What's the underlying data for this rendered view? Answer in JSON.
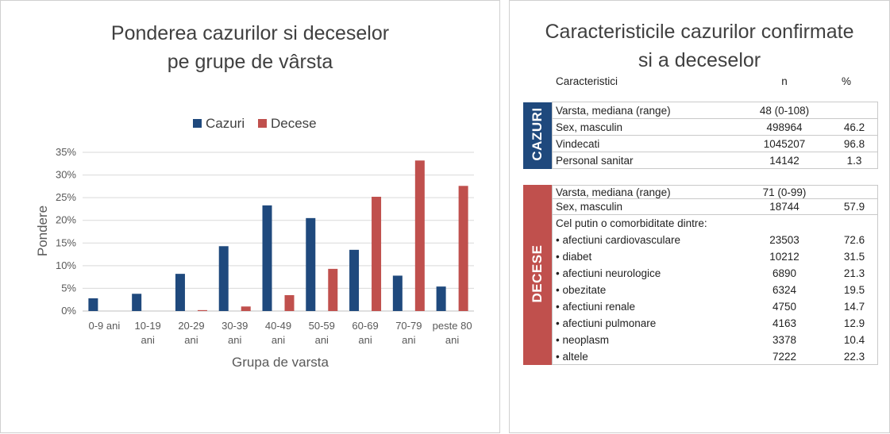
{
  "colors": {
    "cazuri": "#1f497d",
    "decese": "#c0504d",
    "grid": "#d9d9d9"
  },
  "chart": {
    "title_line1": "Ponderea cazurilor si deceselor",
    "title_line2": "pe grupe de vârsta"
  },
  "chart_data": {
    "type": "bar",
    "title": "Ponderea cazurilor si deceselor pe grupe de vârsta",
    "xlabel": "Grupa de varsta",
    "ylabel": "Pondere",
    "ylim": [
      0,
      35
    ],
    "yticks": [
      "0%",
      "5%",
      "10%",
      "15%",
      "20%",
      "25%",
      "30%",
      "35%"
    ],
    "categories": [
      [
        "0-9 ani"
      ],
      [
        "10-19",
        "ani"
      ],
      [
        "20-29",
        "ani"
      ],
      [
        "30-39",
        "ani"
      ],
      [
        "40-49",
        "ani"
      ],
      [
        "50-59",
        "ani"
      ],
      [
        "60-69",
        "ani"
      ],
      [
        "70-79",
        "ani"
      ],
      [
        "peste 80",
        "ani"
      ]
    ],
    "series": [
      {
        "name": "Cazuri",
        "values": [
          2.8,
          3.8,
          8.2,
          14.3,
          23.3,
          20.5,
          13.5,
          7.8,
          5.4
        ]
      },
      {
        "name": "Decese",
        "values": [
          0.0,
          0.0,
          0.2,
          1.0,
          3.5,
          9.3,
          25.2,
          33.2,
          27.6
        ]
      }
    ],
    "legend": "top",
    "grid": true
  },
  "table": {
    "title_line1": "Caracteristicile cazurilor confirmate",
    "title_line2": "si a deceselor",
    "headers": {
      "name": "Caracteristici",
      "n": "n",
      "pct": "%"
    },
    "cazuri": {
      "label": "CAZURI",
      "rows": [
        {
          "name": "Varsta, mediana (range)",
          "n": "48 (0-108)",
          "pct": ""
        },
        {
          "name": "Sex, masculin",
          "n": "498964",
          "pct": "46.2"
        },
        {
          "name": "Vindecati",
          "n": "1045207",
          "pct": "96.8"
        },
        {
          "name": "Personal sanitar",
          "n": "14142",
          "pct": "1.3"
        }
      ]
    },
    "decese": {
      "label": "DECESE",
      "rows": [
        {
          "name": "Varsta, mediana (range)",
          "n": "71 (0-99)",
          "pct": ""
        },
        {
          "name": "Sex, masculin",
          "n": "18744",
          "pct": "57.9"
        }
      ],
      "comorb_title": "Cel putin o comorbiditate dintre:",
      "comorb": [
        {
          "name": "• afectiuni cardiovasculare",
          "n": "23503",
          "pct": "72.6"
        },
        {
          "name": "• diabet",
          "n": "10212",
          "pct": "31.5"
        },
        {
          "name": "• afectiuni neurologice",
          "n": "6890",
          "pct": "21.3"
        },
        {
          "name": "• obezitate",
          "n": "6324",
          "pct": "19.5"
        },
        {
          "name": "• afectiuni renale",
          "n": "4750",
          "pct": "14.7"
        },
        {
          "name": "• afectiuni pulmonare",
          "n": "4163",
          "pct": "12.9"
        },
        {
          "name": "• neoplasm",
          "n": "3378",
          "pct": "10.4"
        },
        {
          "name": "• altele",
          "n": "7222",
          "pct": "22.3"
        }
      ]
    }
  }
}
